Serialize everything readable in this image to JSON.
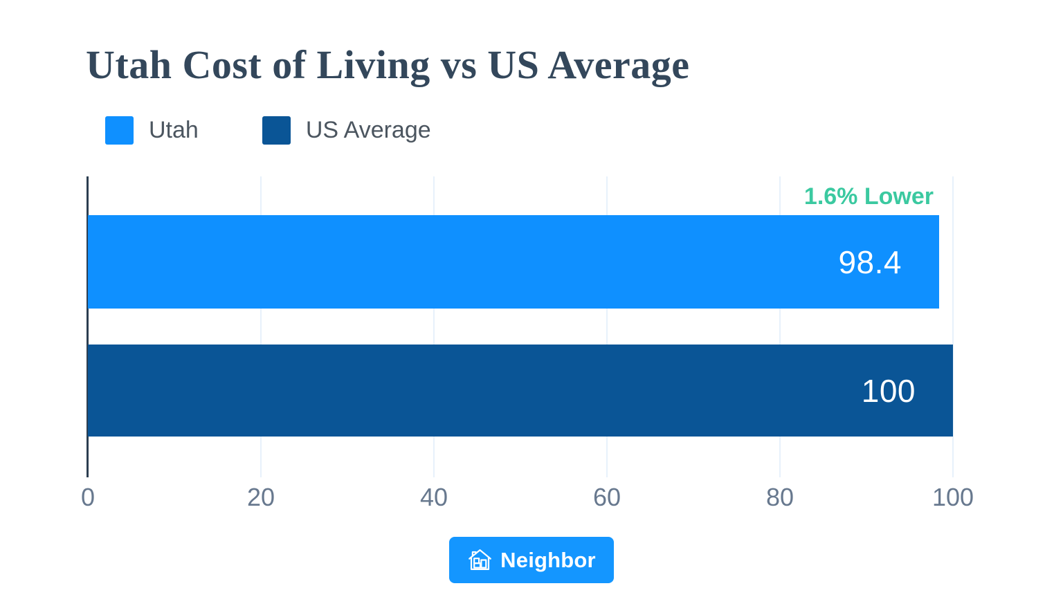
{
  "chart_data": {
    "type": "bar",
    "orientation": "horizontal",
    "title": "Utah Cost of Living vs US Average",
    "categories": [
      "Utah",
      "US Average"
    ],
    "values": [
      98.4,
      100
    ],
    "value_labels": [
      "98.4",
      "100"
    ],
    "series_colors": [
      "#0F90FF",
      "#0A5596"
    ],
    "legend": [
      {
        "label": "Utah",
        "color": "#0F90FF"
      },
      {
        "label": "US Average",
        "color": "#0A5596"
      }
    ],
    "legend_position": "top-left",
    "annotation": {
      "text": "1.6% Lower",
      "color": "#3BC9A0",
      "target_category": "Utah"
    },
    "xlabel": "",
    "ylabel": "",
    "xlim": [
      0,
      100
    ],
    "xticks": [
      0,
      20,
      40,
      60,
      80,
      100
    ],
    "grid": "vertical"
  },
  "colors": {
    "utah_blue": "#0F90FF",
    "us_average_blue": "#0A5596",
    "accent_green": "#3BC9A0",
    "brand_blue": "#1496FF",
    "title_text": "#33475B",
    "axis_line": "#2C3E50",
    "tick_text": "#67788E",
    "gridline": "#E7F1FB"
  },
  "footer": {
    "brand": "Neighbor",
    "icon": "house-icon"
  }
}
